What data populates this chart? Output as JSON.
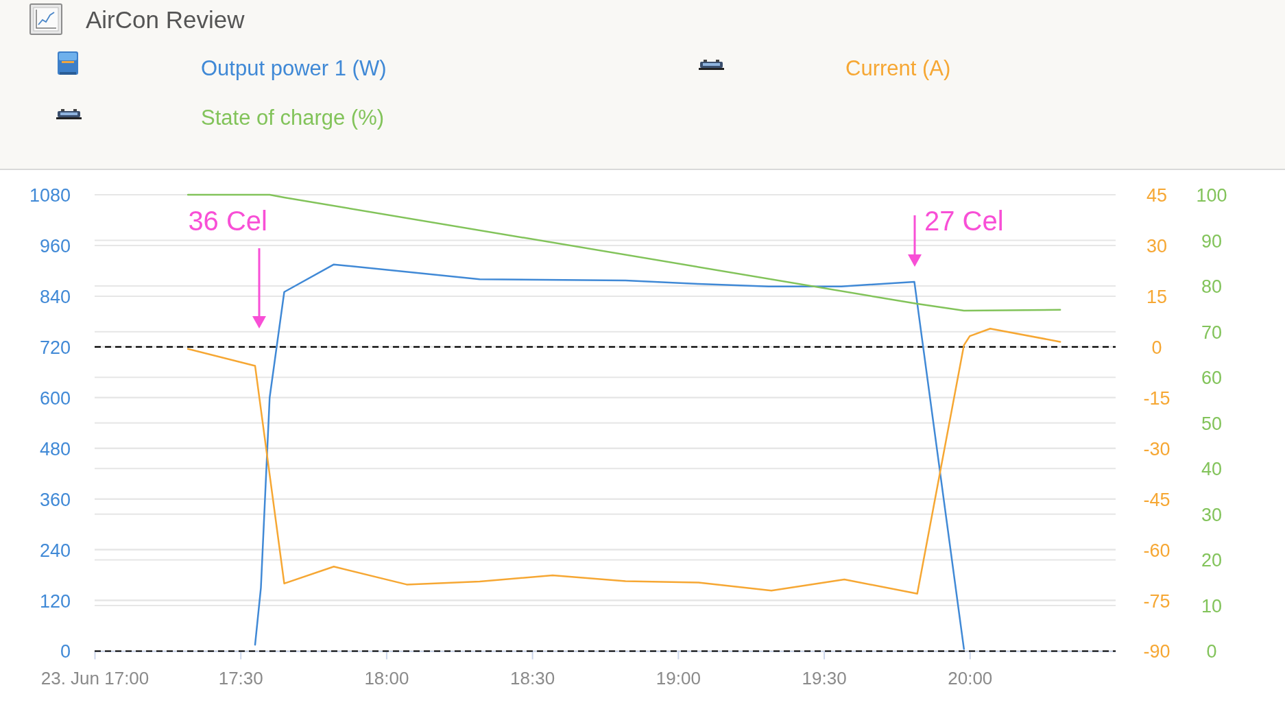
{
  "chart_data": {
    "type": "line",
    "title": "AirCon Review",
    "legend": "top",
    "grid": true,
    "line_style": "solid",
    "series": [
      {
        "name": "Output power 1 (W)",
        "color": "#4089d6",
        "x": [
          17.55,
          17.57,
          17.6,
          17.65,
          17.82,
          18.32,
          18.82,
          19.07,
          19.31,
          19.56,
          19.81,
          19.98
        ],
        "values": [
          15,
          150,
          600,
          850,
          915,
          880,
          877,
          869,
          863,
          863,
          874,
          5
        ]
      },
      {
        "name": "Current (A)",
        "color": "#f6a733",
        "axis": "y2",
        "x": [
          17.32,
          17.55,
          17.65,
          17.82,
          18.07,
          18.32,
          18.57,
          18.82,
          19.07,
          19.32,
          19.57,
          19.82,
          19.98,
          20,
          20.07,
          20.31
        ],
        "values": [
          -0.6,
          -5.6,
          -70,
          -65,
          -70.3,
          -69.4,
          -67.6,
          -69.3,
          -69.7,
          -72.1,
          -68.8,
          -73,
          0.5,
          3.2,
          5.4,
          1.5
        ]
      },
      {
        "name": "State of charge (%)",
        "color": "#82c35a",
        "axis": "y3",
        "x": [
          17.32,
          17.6,
          17.65,
          19.82,
          19.98,
          20.31
        ],
        "values": [
          100,
          100,
          99.4,
          76.1,
          74.6,
          74.8
        ]
      }
    ],
    "xlim": [
      17,
      20.5
    ],
    "xticks": [
      {
        "value": 17,
        "label": "23. Jun 17:00"
      },
      {
        "value": 17.5,
        "label": "17:30"
      },
      {
        "value": 18,
        "label": "18:00"
      },
      {
        "value": 18.5,
        "label": "18:30"
      },
      {
        "value": 19,
        "label": "19:00"
      },
      {
        "value": 19.5,
        "label": "19:30"
      },
      {
        "value": 20,
        "label": "20:00"
      }
    ],
    "ylim": [
      0,
      1080
    ],
    "yticks": [
      0,
      120,
      240,
      360,
      480,
      600,
      720,
      840,
      960,
      1080
    ],
    "y2lim": [
      -90,
      45
    ],
    "y2ticks": [
      -90,
      -75,
      -60,
      -45,
      -30,
      -15,
      0,
      15,
      30,
      45
    ],
    "y3lim": [
      0,
      100
    ],
    "y3ticks": [
      0,
      10,
      20,
      30,
      40,
      50,
      60,
      70,
      80,
      90,
      100
    ],
    "ref_lines": [
      {
        "axis": "y",
        "value": 0,
        "color": "#000000",
        "line_style": "dashed"
      },
      {
        "axis": "y",
        "value": 720,
        "color": "#000000",
        "line_style": "dashed"
      }
    ],
    "annotations": [
      "36 Cel",
      "27 Cel"
    ]
  }
}
